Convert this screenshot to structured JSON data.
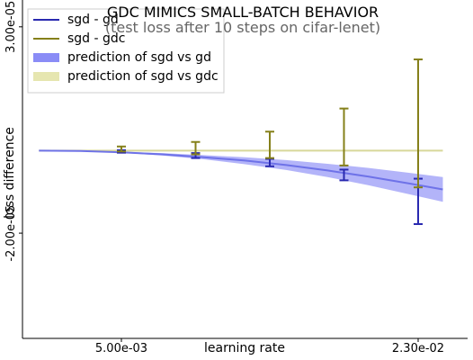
{
  "chart_data": {
    "type": "line",
    "title": "GDC MIMICS SMALL-BATCH BEHAVIOR",
    "subtitle": "(test loss after 10 steps on cifar-lenet)",
    "xlabel": "learning rate",
    "ylabel": "loss difference",
    "x_ticks": [
      {
        "value": 0.005,
        "label": "5.00e-03"
      },
      {
        "value": 0.023,
        "label": "2.30e-02"
      }
    ],
    "y_ticks": [
      {
        "value": 3e-05,
        "label": "3.00e-05"
      },
      {
        "value": -2e-05,
        "label": "-2.00e-05"
      }
    ],
    "xlim": [
      -0.001,
      0.026
    ],
    "ylim": [
      -4.55e-05,
      3.65e-05
    ],
    "grid": false,
    "legend_position": "top-left",
    "series": [
      {
        "name": "sgd - gd",
        "kind": "errorbar",
        "color": "#2929b0",
        "x": [
          0.005,
          0.0095,
          0.014,
          0.0185,
          0.023
        ],
        "y": [
          -2e-07,
          -1.2e-06,
          -2.9e-06,
          -5.9e-06,
          -1.23e-05
        ],
        "yerr": [
          3e-07,
          6e-07,
          9e-07,
          1.3e-06,
          5.5e-06
        ]
      },
      {
        "name": "sgd - gdc",
        "kind": "errorbar",
        "color": "#85801a",
        "x": [
          0.005,
          0.0095,
          0.014,
          0.0185,
          0.023
        ],
        "y": [
          4e-07,
          6e-07,
          1.4e-06,
          3.3e-06,
          6.6e-06
        ],
        "yerr": [
          6e-07,
          1.5e-06,
          3.2e-06,
          6.9e-06,
          1.55e-05
        ]
      },
      {
        "name": "prediction of sgd vs gd",
        "kind": "band",
        "color": "#8a8cf6",
        "line_color": "#6e72e8",
        "x": [
          0.0,
          0.0025,
          0.005,
          0.0075,
          0.01,
          0.0125,
          0.015,
          0.0175,
          0.02,
          0.0225,
          0.0245
        ],
        "y": [
          0.0,
          -1e-07,
          -4e-07,
          -9e-07,
          -1.6e-06,
          -2.4e-06,
          -3.5e-06,
          -4.8e-06,
          -6.3e-06,
          -8e-06,
          -9.4e-06
        ],
        "y_lower": [
          0.0,
          -1e-07,
          -5e-07,
          -1.2e-06,
          -2.1e-06,
          -3.3e-06,
          -4.7e-06,
          -6.4e-06,
          -8.4e-06,
          -1.06e-05,
          -1.24e-05
        ],
        "y_upper": [
          0.0,
          0.0,
          -3e-07,
          -6e-07,
          -1.1e-06,
          -1.6e-06,
          -2.3e-06,
          -3.2e-06,
          -4.2e-06,
          -5.4e-06,
          -6.4e-06
        ]
      },
      {
        "name": "prediction of sgd vs gdc",
        "kind": "band",
        "color": "#e6e6b0",
        "line_color": "#d8d89a",
        "x": [
          0.0,
          0.0245
        ],
        "y": [
          0.0,
          0.0
        ],
        "y_lower": [
          -1e-07,
          -1e-07
        ],
        "y_upper": [
          1e-07,
          1e-07
        ]
      }
    ]
  }
}
